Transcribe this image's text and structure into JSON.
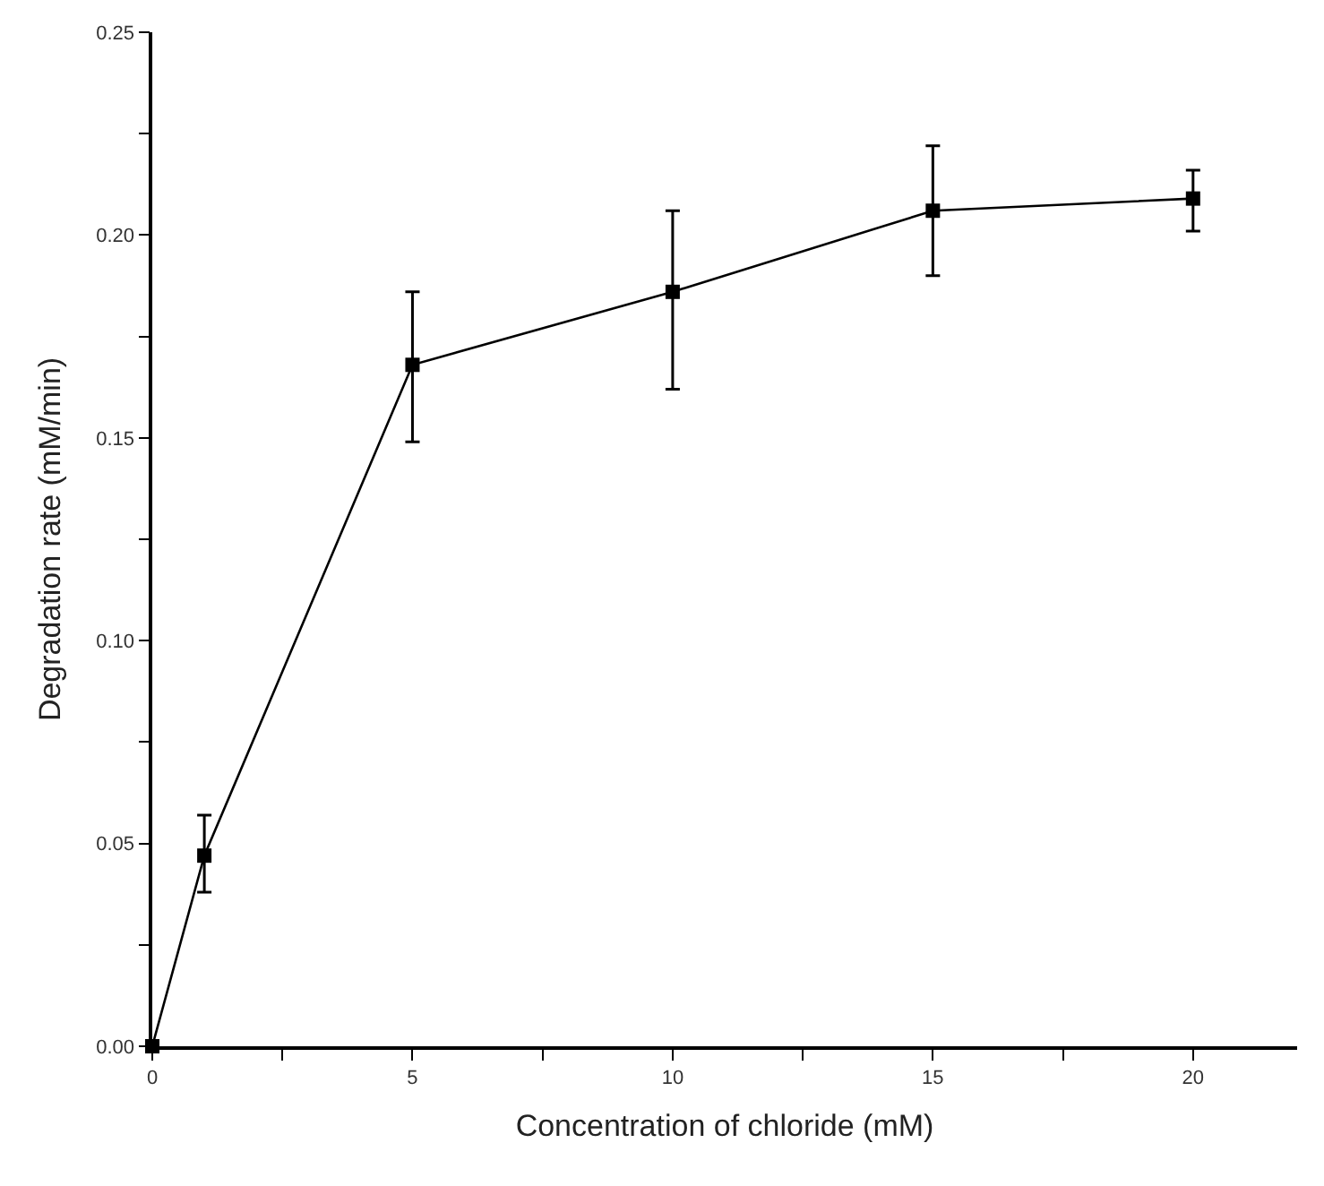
{
  "chart_data": {
    "type": "line",
    "xlabel": "Concentration of chloride (mM)",
    "ylabel": "Degradation rate (mM/min)",
    "x": [
      0,
      1,
      5,
      10,
      15,
      20
    ],
    "series": [
      {
        "color": "#000000",
        "values": [
          0,
          0.047,
          0.168,
          0.186,
          0.206,
          0.209
        ],
        "errors": [
          null,
          [
            0.038,
            0.057
          ],
          [
            0.149,
            0.186
          ],
          [
            0.162,
            0.206
          ],
          [
            0.19,
            0.222
          ],
          [
            0.201,
            0.216
          ]
        ]
      }
    ],
    "xlim": [
      0,
      22
    ],
    "ylim": [
      0,
      0.25
    ],
    "xticks": [
      0,
      {
        "value": 2.5,
        "label": null
      },
      5,
      {
        "value": 7.5,
        "label": null
      },
      10,
      {
        "value": 12.5,
        "label": null
      },
      15,
      {
        "value": 17.5,
        "label": null
      },
      20
    ],
    "yticks": [
      "0.00",
      {
        "value": 0.025,
        "label": null
      },
      {
        "value": 0.05,
        "label": "0.05"
      },
      {
        "value": 0.075,
        "label": null
      },
      {
        "value": 0.1,
        "label": "0.10"
      },
      {
        "value": 0.125,
        "label": null
      },
      {
        "value": 0.15,
        "label": "0.15"
      },
      {
        "value": 0.175,
        "label": null
      },
      {
        "value": 0.2,
        "label": "0.20"
      },
      {
        "value": 0.225,
        "label": null
      },
      {
        "value": 0.25,
        "label": "0.25"
      }
    ],
    "marker": "square",
    "line_style": "solid"
  }
}
